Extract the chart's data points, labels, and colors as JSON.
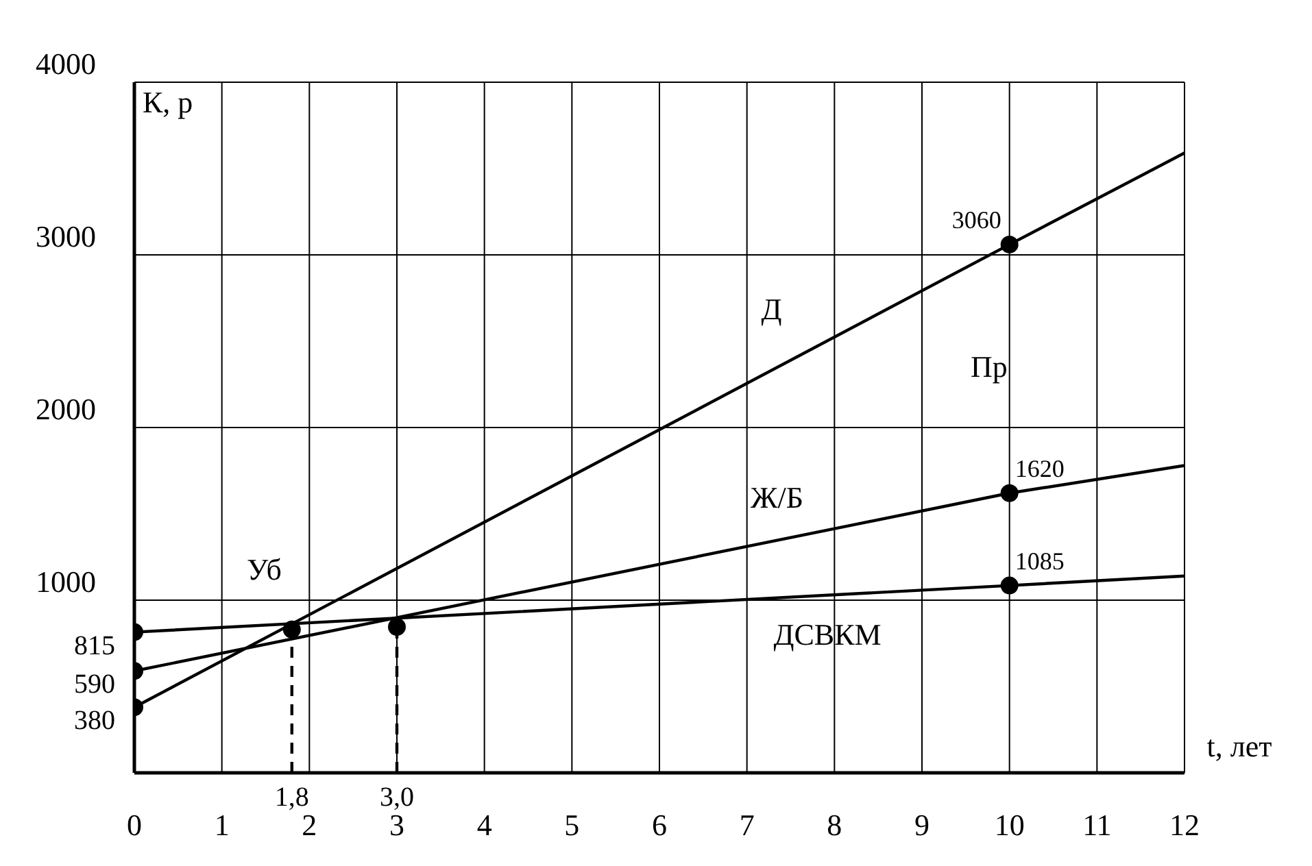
{
  "chart_data": {
    "type": "line",
    "xlabel": "t, лет",
    "ylabel": "К, р",
    "xlim": [
      0,
      12
    ],
    "xticks": [
      0,
      1,
      2,
      3,
      4,
      5,
      6,
      7,
      8,
      9,
      10,
      11,
      12
    ],
    "ylim": [
      0,
      4000
    ],
    "yticks": [
      {
        "value": 0,
        "label": null
      },
      1000,
      2000,
      3000,
      4000
    ],
    "grid": true,
    "marker": "none",
    "series": [
      {
        "name": "Д",
        "color": "#000000",
        "x": [
          0,
          10,
          12
        ],
        "values": [
          380,
          3060,
          3590
        ]
      },
      {
        "name": "Ж/Б",
        "color": "#000000",
        "x": [
          0,
          10,
          12
        ],
        "values": [
          590,
          1620,
          1780
        ]
      },
      {
        "name": "ДСВКМ",
        "color": "#000000",
        "x": [
          0,
          10,
          12
        ],
        "values": [
          815,
          1085,
          1140
        ]
      },
      {
        "type": "line",
        "color": "#000000",
        "line_style": "dashed",
        "x": [
          1.8,
          1.8
        ],
        "values": [
          0,
          830
        ]
      },
      {
        "type": "line",
        "color": "#000000",
        "line_style": "dashed",
        "x": [
          3.0,
          3.0
        ],
        "values": [
          0,
          845
        ]
      },
      {
        "type": "scatter",
        "color": "#000000",
        "marker": "circle",
        "x": [
          0,
          0,
          0,
          1.8,
          3.0,
          10,
          10,
          10
        ],
        "values": [
          815,
          590,
          380,
          830,
          845,
          3060,
          1620,
          1085
        ],
        "value_labels": [
          "815",
          "590",
          "380",
          null,
          null,
          "3060",
          "1620",
          "1085"
        ]
      }
    ],
    "annotations": [
      "Уб",
      "Пр",
      {
        "text": "1,8",
        "x": 1.8,
        "y": 0
      },
      {
        "text": "3,0",
        "x": 3.0,
        "y": 0
      }
    ]
  }
}
